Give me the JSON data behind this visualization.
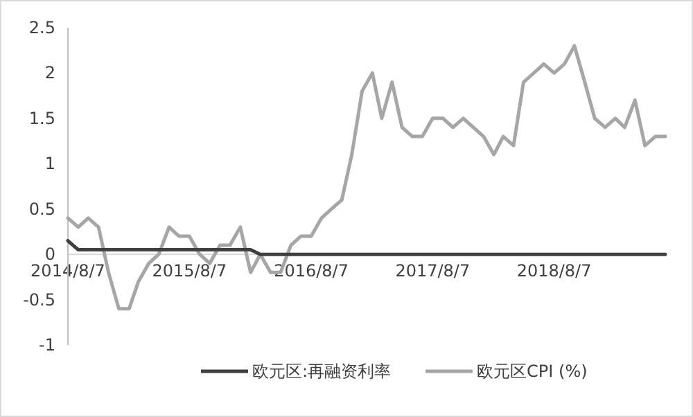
{
  "chart_data": {
    "type": "line",
    "x": [
      "2014-08-07",
      "2014-09-07",
      "2014-10-07",
      "2014-11-07",
      "2014-12-07",
      "2015-01-07",
      "2015-02-07",
      "2015-03-07",
      "2015-04-07",
      "2015-05-07",
      "2015-06-07",
      "2015-07-07",
      "2015-08-07",
      "2015-09-07",
      "2015-10-07",
      "2015-11-07",
      "2015-12-07",
      "2016-01-07",
      "2016-02-07",
      "2016-03-07",
      "2016-04-07",
      "2016-05-07",
      "2016-06-07",
      "2016-07-07",
      "2016-08-07",
      "2016-09-07",
      "2016-10-07",
      "2016-11-07",
      "2016-12-07",
      "2017-01-07",
      "2017-02-07",
      "2017-03-07",
      "2017-04-07",
      "2017-05-07",
      "2017-06-07",
      "2017-07-07",
      "2017-08-07",
      "2017-09-07",
      "2017-10-07",
      "2017-11-07",
      "2017-12-07",
      "2018-01-07",
      "2018-02-07",
      "2018-03-07",
      "2018-04-07",
      "2018-05-07",
      "2018-06-07",
      "2018-07-07",
      "2018-08-07",
      "2018-09-07",
      "2018-10-07",
      "2018-11-07",
      "2018-12-07",
      "2019-01-07",
      "2019-02-07",
      "2019-03-07",
      "2019-04-07",
      "2019-05-07",
      "2019-06-07",
      "2019-07-07"
    ],
    "series": [
      {
        "name": "欧元区:再融资利率",
        "color": "#404040",
        "values": [
          0.15,
          0.05,
          0.05,
          0.05,
          0.05,
          0.05,
          0.05,
          0.05,
          0.05,
          0.05,
          0.05,
          0.05,
          0.05,
          0.05,
          0.05,
          0.05,
          0.05,
          0.05,
          0.05,
          0,
          0,
          0,
          0,
          0,
          0,
          0,
          0,
          0,
          0,
          0,
          0,
          0,
          0,
          0,
          0,
          0,
          0,
          0,
          0,
          0,
          0,
          0,
          0,
          0,
          0,
          0,
          0,
          0,
          0,
          0,
          0,
          0,
          0,
          0,
          0,
          0,
          0,
          0,
          0,
          0
        ]
      },
      {
        "name": "欧元区CPI (%)",
        "color": "#a6a6a6",
        "values": [
          0.4,
          0.3,
          0.4,
          0.3,
          -0.2,
          -0.6,
          -0.6,
          -0.3,
          -0.1,
          0.0,
          0.3,
          0.2,
          0.2,
          0.0,
          -0.1,
          0.1,
          0.1,
          0.3,
          -0.2,
          0.0,
          -0.2,
          -0.2,
          0.1,
          0.2,
          0.2,
          0.4,
          0.5,
          0.6,
          1.1,
          1.8,
          2.0,
          1.5,
          1.9,
          1.4,
          1.3,
          1.3,
          1.5,
          1.5,
          1.4,
          1.5,
          1.4,
          1.3,
          1.1,
          1.3,
          1.2,
          1.9,
          2.0,
          2.1,
          2.0,
          2.1,
          2.3,
          1.9,
          1.5,
          1.4,
          1.5,
          1.4,
          1.7,
          1.2,
          1.3,
          1.3
        ]
      }
    ],
    "xlim": [
      "2014-08-07",
      "2019-07-07"
    ],
    "xticks": [
      {
        "value": "2014-08-07",
        "label": "2014/8/7"
      },
      {
        "value": "2015-08-07",
        "label": "2015/8/7"
      },
      {
        "value": "2016-08-07",
        "label": "2016/8/7"
      },
      {
        "value": "2017-08-07",
        "label": "2017/8/7"
      },
      {
        "value": "2018-08-07",
        "label": "2018/8/7"
      }
    ],
    "ylim": [
      -1,
      2.5
    ],
    "yticks": [
      -1,
      -0.5,
      0,
      0.5,
      1,
      1.5,
      2,
      2.5
    ],
    "legend": "bottom",
    "grid": false,
    "marker": "none",
    "line_style": "solid"
  }
}
